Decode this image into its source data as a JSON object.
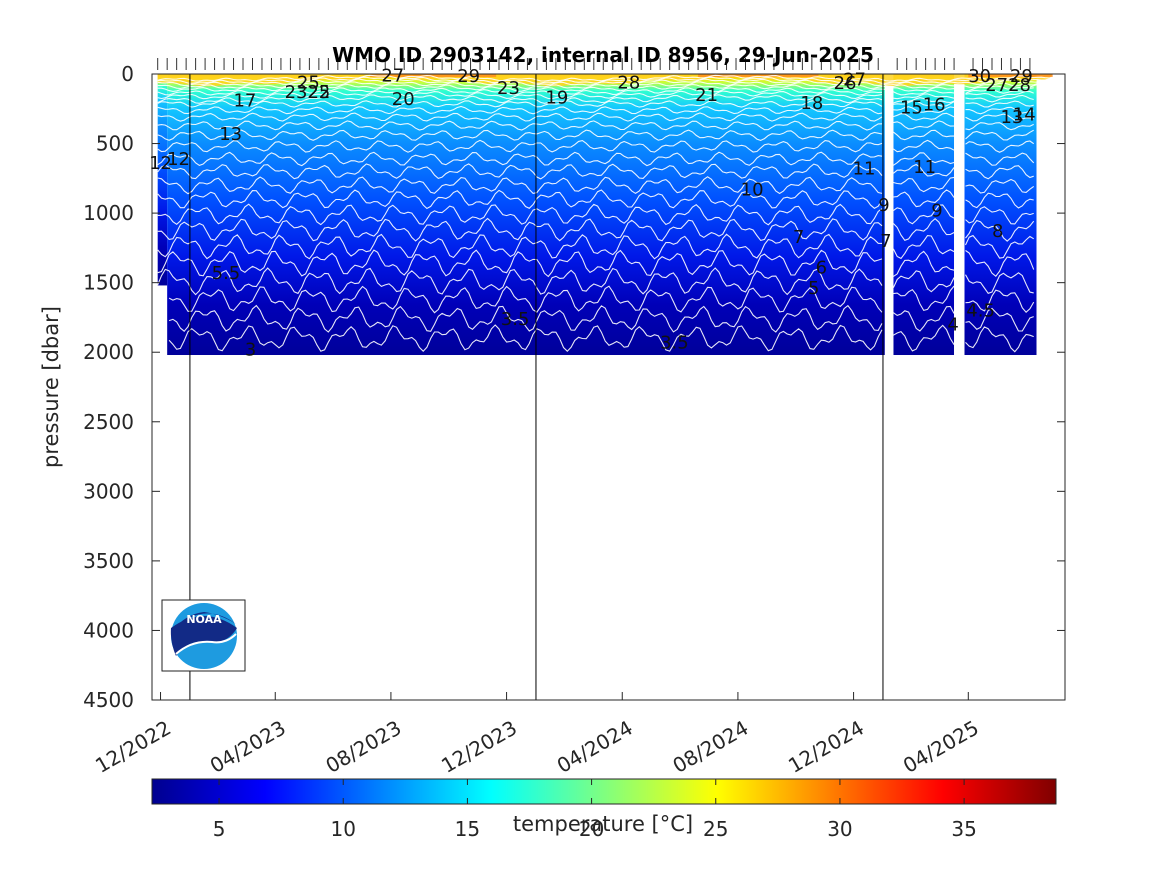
{
  "chart_data": {
    "type": "heatmap",
    "title": "WMO ID 2903142, internal ID 8956, 29-Jun-2025",
    "ylabel": "pressure [dbar]",
    "xlabel": "",
    "colorbar_label": "temperature [°C]",
    "y_ticks": [
      0,
      500,
      1000,
      1500,
      2000,
      2500,
      3000,
      3500,
      4000,
      4500
    ],
    "ylim": [
      0,
      4500
    ],
    "y_reversed": true,
    "x_ticks": [
      "12/2022",
      "04/2023",
      "08/2023",
      "12/2023",
      "04/2024",
      "08/2024",
      "12/2024",
      "04/2025"
    ],
    "colorbar_ticks": [
      5,
      10,
      15,
      20,
      25,
      30,
      35
    ],
    "colorbar_range": [
      2.3,
      38.7
    ],
    "colormap": "jet",
    "grid": false,
    "profile_max_depth_dbar": 2000,
    "year_divider_dates": [
      "01/2023",
      "01/2024",
      "01/2025"
    ],
    "contour_labels": [
      {
        "text": "25",
        "date": "2023-05-06",
        "p": 60
      },
      {
        "text": "27",
        "date": "2023-08-03",
        "p": 10
      },
      {
        "text": "29",
        "date": "2023-10-22",
        "p": 15
      },
      {
        "text": "23",
        "date": "2023-12-03",
        "p": 100
      },
      {
        "text": "28",
        "date": "2024-04-08",
        "p": 60
      },
      {
        "text": "26",
        "date": "2024-11-22",
        "p": 65
      },
      {
        "text": "27",
        "date": "2024-12-02",
        "p": 40
      },
      {
        "text": "30",
        "date": "2025-04-13",
        "p": 15
      },
      {
        "text": "29",
        "date": "2025-05-27",
        "p": 15
      },
      {
        "text": "2325",
        "date": "2023-05-05",
        "p": 130
      },
      {
        "text": "22",
        "date": "2023-05-17",
        "p": 130
      },
      {
        "text": "20",
        "date": "2023-08-14",
        "p": 180
      },
      {
        "text": "19",
        "date": "2024-01-23",
        "p": 170
      },
      {
        "text": "21",
        "date": "2024-06-29",
        "p": 150
      },
      {
        "text": "18",
        "date": "2024-10-18",
        "p": 210
      },
      {
        "text": "2728",
        "date": "2025-05-13",
        "p": 80
      },
      {
        "text": "17",
        "date": "2023-02-28",
        "p": 190
      },
      {
        "text": "15",
        "date": "2025-01-31",
        "p": 240
      },
      {
        "text": "16",
        "date": "2025-02-24",
        "p": 220
      },
      {
        "text": "14",
        "date": "2025-05-30",
        "p": 290
      },
      {
        "text": "13",
        "date": "2025-05-17",
        "p": 310
      },
      {
        "text": "13",
        "date": "2023-02-13",
        "p": 430
      },
      {
        "text": "12",
        "date": "2022-12-01",
        "p": 640
      },
      {
        "text": "12",
        "date": "2022-12-20",
        "p": 610
      },
      {
        "text": "11",
        "date": "2024-12-12",
        "p": 680
      },
      {
        "text": "11",
        "date": "2025-02-14",
        "p": 670
      },
      {
        "text": "10",
        "date": "2024-08-16",
        "p": 830
      },
      {
        "text": "9",
        "date": "2025-01-02",
        "p": 940
      },
      {
        "text": "9",
        "date": "2025-02-27",
        "p": 980
      },
      {
        "text": "8",
        "date": "2025-05-02",
        "p": 1130
      },
      {
        "text": "7",
        "date": "2024-10-04",
        "p": 1170
      },
      {
        "text": "7",
        "date": "2025-01-04",
        "p": 1200
      },
      {
        "text": "6",
        "date": "2024-10-28",
        "p": 1390
      },
      {
        "text": "5",
        "date": "2024-10-20",
        "p": 1540
      },
      {
        "text": "5.5",
        "date": "2023-02-08",
        "p": 1430
      },
      {
        "text": "4.5",
        "date": "2025-04-14",
        "p": 1700
      },
      {
        "text": "4",
        "date": "2025-03-16",
        "p": 1800
      },
      {
        "text": "3.5",
        "date": "2023-12-10",
        "p": 1760
      },
      {
        "text": "3.5",
        "date": "2024-05-26",
        "p": 1930
      },
      {
        "text": "3",
        "date": "2023-03-06",
        "p": 1980
      }
    ]
  },
  "logo": {
    "text": "NOAA"
  }
}
